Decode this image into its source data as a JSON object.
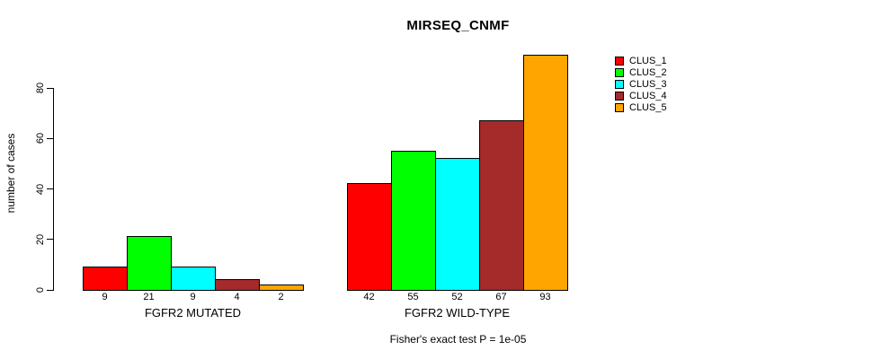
{
  "chart_data": {
    "type": "bar",
    "title": "MIRSEQ_CNMF",
    "ylabel": "number of cases",
    "xlabel": "",
    "caption": "Fisher's exact test P = 1e-05",
    "ylim": [
      0,
      80
    ],
    "yticks": [
      0,
      20,
      40,
      60,
      80
    ],
    "grid": false,
    "legend_position": "right-outside",
    "bar_border_color": "#000000",
    "background_color": "#ffffff",
    "series": [
      {
        "name": "CLUS_1",
        "color": "#ff0000"
      },
      {
        "name": "CLUS_2",
        "color": "#00ff00"
      },
      {
        "name": "CLUS_3",
        "color": "#00ffff"
      },
      {
        "name": "CLUS_4",
        "color": "#a52a2a"
      },
      {
        "name": "CLUS_5",
        "color": "#ffa500"
      }
    ],
    "groups": [
      {
        "label": "FGFR2 MUTATED",
        "values": [
          9,
          21,
          9,
          4,
          2
        ]
      },
      {
        "label": "FGFR2 WILD-TYPE",
        "values": [
          42,
          55,
          52,
          67,
          93
        ]
      }
    ]
  }
}
